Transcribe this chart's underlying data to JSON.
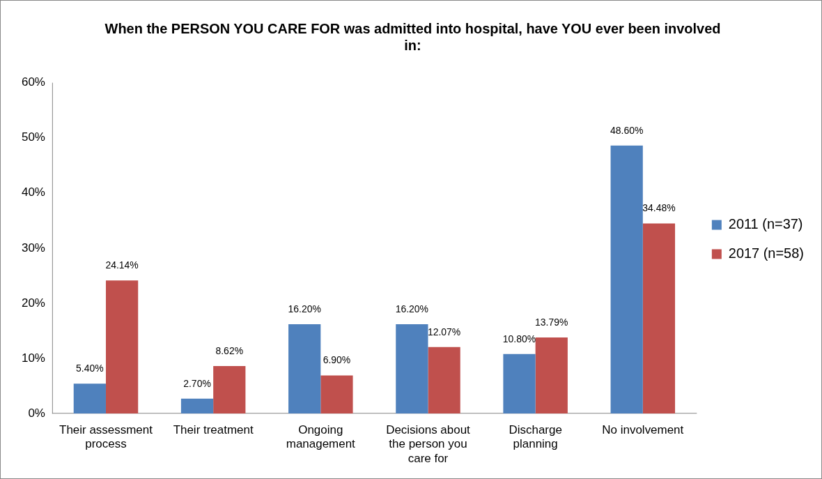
{
  "chart_data": {
    "type": "bar",
    "title": "When the PERSON YOU CARE FOR was admitted into hospital, have YOU ever been involved in:",
    "categories": [
      "Their assessment process",
      "Their treatment",
      "Ongoing management",
      "Decisions about the person you care for",
      "Discharge planning",
      "No involvement"
    ],
    "series": [
      {
        "name": "2011 (n=37)",
        "color": "#4f81bd",
        "values": [
          5.4,
          2.7,
          16.2,
          16.2,
          10.8,
          48.6
        ],
        "value_labels": [
          "5.40%",
          "2.70%",
          "16.20%",
          "16.20%",
          "10.80%",
          "48.60%"
        ]
      },
      {
        "name": "2017 (n=58)",
        "color": "#c0504d",
        "values": [
          24.14,
          8.62,
          6.9,
          12.07,
          13.79,
          34.48
        ],
        "value_labels": [
          "24.14%",
          "8.62%",
          "6.90%",
          "12.07%",
          "13.79%",
          "34.48%"
        ]
      }
    ],
    "ylim": [
      0,
      60
    ],
    "yticks": [
      {
        "value": 0,
        "label": "0%"
      },
      {
        "value": 10,
        "label": "10%"
      },
      {
        "value": 20,
        "label": "20%"
      },
      {
        "value": 30,
        "label": "30%"
      },
      {
        "value": 40,
        "label": "40%"
      },
      {
        "value": 50,
        "label": "50%"
      },
      {
        "value": 60,
        "label": "60%"
      }
    ],
    "grid": false,
    "legend": "right"
  }
}
